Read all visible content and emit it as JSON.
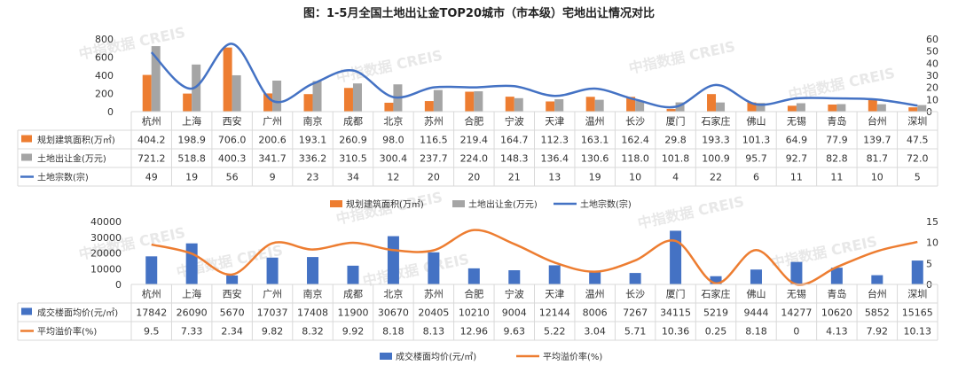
{
  "title": "图：1-5月全国土地出让金TOP20城市（市本级）宅地出让情况对比",
  "watermark": "中指数据 CREIS",
  "colors": {
    "orange": "#ED7D31",
    "gray": "#A5A5A5",
    "blue_line": "#4472C4",
    "blue_bar": "#4472C4",
    "orange_line": "#ED7D31",
    "grid": "#D9D9D9",
    "watermark": "#E8E8E8"
  },
  "chart_data": [
    {
      "type": "bar",
      "categories": [
        "杭州",
        "上海",
        "西安",
        "广州",
        "南京",
        "成都",
        "北京",
        "苏州",
        "合肥",
        "宁波",
        "天津",
        "温州",
        "长沙",
        "厦门",
        "石家庄",
        "佛山",
        "无锡",
        "青岛",
        "台州",
        "深圳"
      ],
      "series": [
        {
          "name": "规划建筑面积(万㎡)",
          "kind": "bar",
          "axis": "left",
          "color": "#ED7D31",
          "values": [
            "404.2",
            "198.9",
            "706.0",
            "200.6",
            "193.1",
            "260.9",
            "98.0",
            "116.5",
            "219.4",
            "164.7",
            "112.3",
            "163.1",
            "162.4",
            "29.8",
            "193.3",
            "101.3",
            "64.9",
            "77.9",
            "139.7",
            "47.5"
          ]
        },
        {
          "name": "土地出让金(万元)",
          "kind": "bar",
          "axis": "left",
          "color": "#A5A5A5",
          "values": [
            "721.2",
            "518.8",
            "400.3",
            "341.7",
            "336.2",
            "310.5",
            "300.4",
            "237.7",
            "224.0",
            "148.3",
            "136.4",
            "130.6",
            "118.0",
            "101.8",
            "100.9",
            "95.7",
            "92.7",
            "82.8",
            "81.7",
            "72.0"
          ]
        },
        {
          "name": "土地宗数(宗)",
          "kind": "line",
          "axis": "right",
          "color": "#4472C4",
          "values": [
            "49",
            "19",
            "56",
            "9",
            "23",
            "34",
            "12",
            "20",
            "20",
            "21",
            "13",
            "19",
            "10",
            "4",
            "22",
            "6",
            "11",
            "11",
            "10",
            "5"
          ]
        }
      ],
      "left_axis": {
        "ticks": [
          "0",
          "200",
          "400",
          "600",
          "800"
        ],
        "ylim": [
          0,
          800
        ]
      },
      "right_axis": {
        "ticks": [
          "0",
          "10",
          "20",
          "30",
          "40",
          "50",
          "60"
        ],
        "ylim": [
          0,
          60
        ]
      },
      "legend": [
        "规划建筑面积(万㎡)",
        "土地出让金(万元)",
        "土地宗数(宗)"
      ]
    },
    {
      "type": "bar",
      "categories": [
        "杭州",
        "上海",
        "西安",
        "广州",
        "南京",
        "成都",
        "北京",
        "苏州",
        "合肥",
        "宁波",
        "天津",
        "温州",
        "长沙",
        "厦门",
        "石家庄",
        "佛山",
        "无锡",
        "青岛",
        "台州",
        "深圳"
      ],
      "series": [
        {
          "name": "成交楼面均价(元/㎡)",
          "kind": "bar",
          "axis": "left",
          "color": "#4472C4",
          "values": [
            "17842",
            "26090",
            "5670",
            "17037",
            "17408",
            "11900",
            "30670",
            "20405",
            "10210",
            "9004",
            "12144",
            "8006",
            "7267",
            "34115",
            "5219",
            "9444",
            "14277",
            "10620",
            "5852",
            "15165"
          ]
        },
        {
          "name": "平均溢价率(%)",
          "kind": "line",
          "axis": "right",
          "color": "#ED7D31",
          "values": [
            "9.5",
            "7.33",
            "2.34",
            "9.82",
            "8.32",
            "9.92",
            "8.18",
            "8.13",
            "12.96",
            "9.63",
            "5.22",
            "3.04",
            "5.71",
            "10.36",
            "0.25",
            "8.18",
            "0",
            "4.13",
            "7.92",
            "10.13"
          ]
        }
      ],
      "left_axis": {
        "ticks": [
          "0",
          "10000",
          "20000",
          "30000",
          "40000"
        ],
        "ylim": [
          0,
          40000
        ]
      },
      "right_axis": {
        "ticks": [
          "0",
          "5",
          "10",
          "15"
        ],
        "ylim": [
          0,
          15
        ]
      },
      "legend": [
        "成交楼面均价(元/㎡)",
        "平均溢价率(%)"
      ]
    }
  ]
}
